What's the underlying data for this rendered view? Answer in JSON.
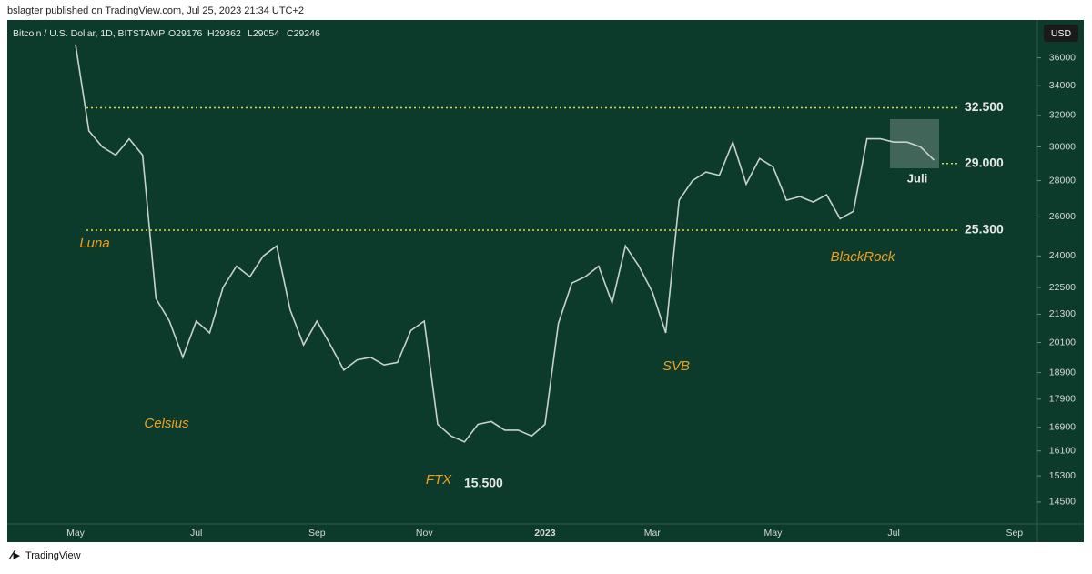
{
  "header": {
    "publisher": "bslagter published on TradingView.com, Jul 25, 2023 21:34 UTC+2",
    "symbol": "Bitcoin / U.S. Dollar, 1D, BITSTAMP",
    "ohlc": [
      "O29176",
      "H29362",
      "L29054",
      "C29246"
    ],
    "currency": "USD"
  },
  "footer": {
    "brand": "TradingView"
  },
  "chart_data": {
    "type": "line",
    "color": "#c9d1cd",
    "log_scale": true,
    "categories": [
      "May",
      null,
      null,
      null,
      null,
      null,
      null,
      null,
      null,
      "Jul",
      null,
      null,
      null,
      null,
      null,
      null,
      null,
      null,
      "Sep",
      null,
      null,
      null,
      null,
      null,
      null,
      null,
      "Nov",
      null,
      null,
      null,
      null,
      null,
      null,
      null,
      null,
      "2023",
      null,
      null,
      null,
      null,
      null,
      null,
      null,
      "Mar",
      null,
      null,
      null,
      null,
      null,
      null,
      null,
      null,
      "May",
      null,
      null,
      null,
      null,
      null,
      null,
      null,
      null,
      "Jul",
      null,
      null,
      null,
      null,
      null,
      null,
      null,
      null,
      "Sep",
      null
    ],
    "values": [
      37000,
      31000,
      30000,
      29500,
      30500,
      29500,
      22000,
      21000,
      19500,
      21000,
      20500,
      22500,
      23500,
      23000,
      24000,
      24500,
      21500,
      20000,
      21000,
      20000,
      19000,
      19400,
      19500,
      19200,
      19300,
      20600,
      21000,
      17000,
      16600,
      16400,
      17000,
      17100,
      16800,
      16800,
      16600,
      17000,
      20900,
      22700,
      23000,
      23500,
      21800,
      24500,
      23500,
      22300,
      20500,
      26900,
      28000,
      28500,
      28300,
      30300,
      27800,
      29300,
      28800,
      26900,
      27100,
      26800,
      27200,
      25900,
      26300,
      30500,
      30500,
      30300,
      30300,
      30000,
      29200,
      null,
      null,
      null,
      null,
      null,
      null,
      null
    ],
    "ylim": [
      13890,
      38900
    ],
    "yticks": [
      14500,
      15300,
      16100,
      16900,
      17900,
      18900,
      20100,
      21300,
      22500,
      24000,
      26000,
      28000,
      30000,
      32000,
      34000,
      36000
    ],
    "levels": [
      {
        "value": 32500,
        "label": "32.500"
      },
      {
        "value": 29000,
        "label": "29.000"
      },
      {
        "value": 25300,
        "label": "25.300"
      }
    ],
    "level_color": "#e6d74a",
    "annotations": [
      "Luna",
      "Celsius",
      "FTX",
      "SVB",
      "BlackRock"
    ],
    "annotation_color": "#f0a020",
    "low_label": {
      "value": 15500,
      "label": "15.500"
    },
    "box_label": "Juli"
  }
}
